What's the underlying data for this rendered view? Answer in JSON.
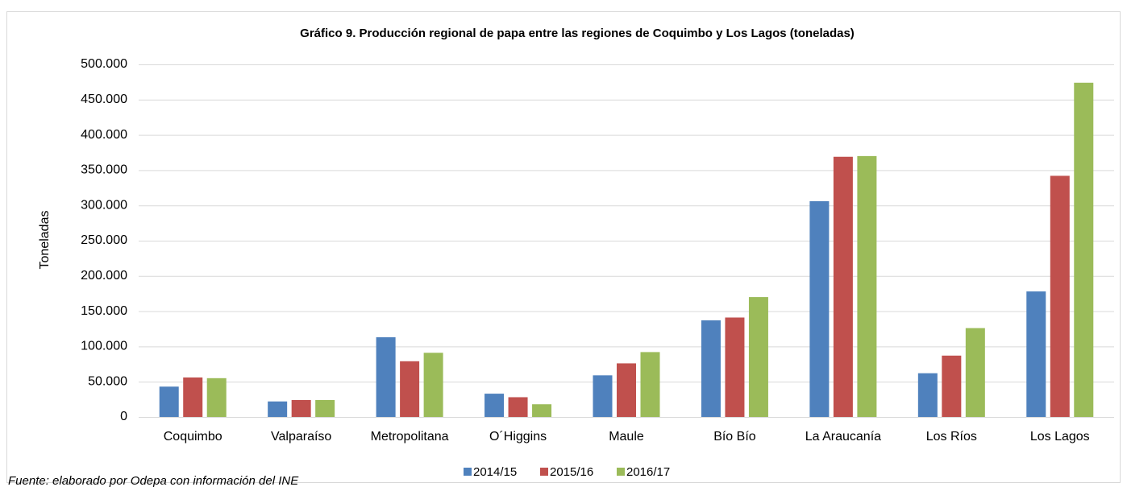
{
  "chart_data": {
    "type": "bar",
    "title": "Gráfico 9. Producción regional de papa entre las regiones de Coquimbo y Los Lagos (toneladas)",
    "ylabel": "Toneladas",
    "source": "Fuente: elaborado por Odepa con información del INE",
    "categories": [
      "Coquimbo",
      "Valparaíso",
      "Metropolitana",
      "O´Higgins",
      "Maule",
      "Bío Bío",
      "La Araucanía",
      "Los Ríos",
      "Los Lagos"
    ],
    "series": [
      {
        "name": "2014/15",
        "color": "#4f81bd",
        "values": [
          43000,
          22000,
          113000,
          33000,
          59000,
          137000,
          306000,
          62000,
          178000
        ]
      },
      {
        "name": "2015/16",
        "color": "#c0504d",
        "values": [
          56000,
          24000,
          79000,
          28000,
          76000,
          141000,
          369000,
          87000,
          342000
        ]
      },
      {
        "name": "2016/17",
        "color": "#9bbb59",
        "values": [
          55000,
          24000,
          91000,
          18000,
          92000,
          170000,
          370000,
          126000,
          474000
        ]
      }
    ],
    "ylim": [
      0,
      500000
    ],
    "yticks": [
      0,
      {
        "value": 50000,
        "label": "50.000"
      },
      {
        "value": 100000,
        "label": "100.000"
      },
      {
        "value": 150000,
        "label": "150.000"
      },
      {
        "value": 200000,
        "label": "200.000"
      },
      {
        "value": 250000,
        "label": "250.000"
      },
      {
        "value": 300000,
        "label": "300.000"
      },
      {
        "value": 350000,
        "label": "350.000"
      },
      {
        "value": 400000,
        "label": "400.000"
      },
      {
        "value": 450000,
        "label": "450.000"
      },
      {
        "value": 500000,
        "label": "500.000"
      }
    ],
    "grid": true,
    "legend": "bottom"
  }
}
